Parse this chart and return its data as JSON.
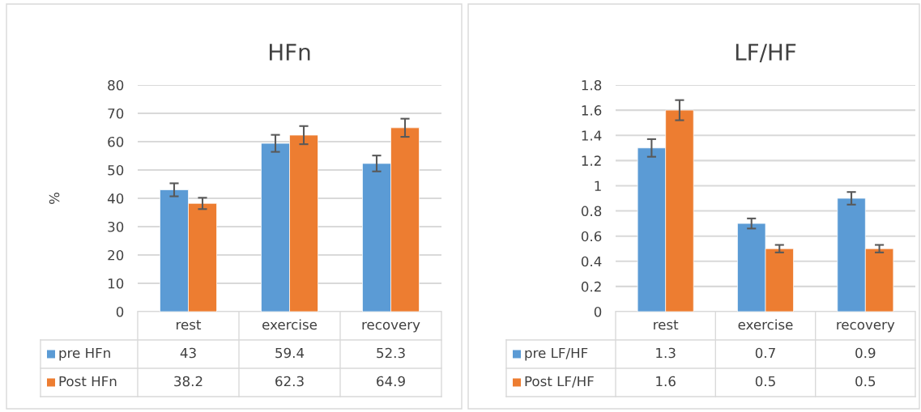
{
  "chart_data": [
    {
      "type": "bar",
      "title": "HFn",
      "ylabel": "%",
      "categories": [
        "rest",
        "exercise",
        "recovery"
      ],
      "ylim": [
        0,
        80
      ],
      "yticks": [
        0,
        10,
        20,
        30,
        40,
        50,
        60,
        70,
        80
      ],
      "grid": "y",
      "legend": "bottom",
      "data_labels": true,
      "series": [
        {
          "name": "pre HFn",
          "color": "#5b9bd5",
          "values": [
            43,
            59.4,
            52.3
          ],
          "errors": [
            2.3,
            3,
            2.8
          ]
        },
        {
          "name": "Post HFn",
          "color": "#ed7d31",
          "values": [
            38.2,
            62.3,
            64.9
          ],
          "errors": [
            2,
            3.2,
            3.2
          ]
        }
      ]
    },
    {
      "type": "bar",
      "title": "LF/HF",
      "categories": [
        "rest",
        "exercise",
        "recovery"
      ],
      "ylim": [
        0,
        1.8
      ],
      "yticks": [
        {
          "value": 0,
          "label": "0"
        },
        {
          "value": 0.2,
          "label": "0.2"
        },
        {
          "value": 0.4,
          "label": "0.4"
        },
        {
          "value": 0.6,
          "label": "0.6"
        },
        {
          "value": 0.8,
          "label": "0.8"
        },
        {
          "value": 1,
          "label": "1"
        },
        {
          "value": 1.2,
          "label": "1.2"
        },
        {
          "value": 1.4,
          "label": "1.4"
        },
        {
          "value": 1.6,
          "label": "1.6"
        },
        {
          "value": 1.8,
          "label": "1.8"
        }
      ],
      "grid": "y",
      "legend": "bottom",
      "data_labels": true,
      "series": [
        {
          "name": "pre LF/HF",
          "color": "#5b9bd5",
          "values": [
            1.3,
            0.7,
            0.9
          ],
          "errors": [
            0.07,
            0.04,
            0.05
          ]
        },
        {
          "name": "Post LF/HF",
          "color": "#ed7d31",
          "values": [
            1.6,
            0.5,
            0.5
          ],
          "errors": [
            0.08,
            0.03,
            0.03
          ]
        }
      ]
    }
  ]
}
